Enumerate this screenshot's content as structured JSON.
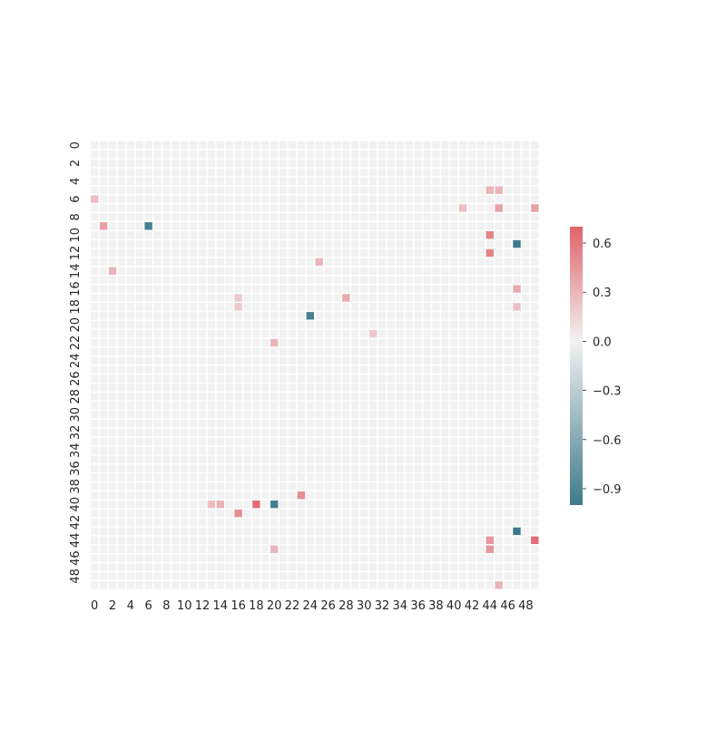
{
  "chart_data": {
    "type": "heatmap",
    "rows": 50,
    "cols": 50,
    "x_ticks": [
      "0",
      "2",
      "4",
      "6",
      "8",
      "10",
      "12",
      "14",
      "16",
      "18",
      "20",
      "22",
      "24",
      "26",
      "28",
      "30",
      "32",
      "34",
      "36",
      "38",
      "40",
      "42",
      "44",
      "46",
      "48"
    ],
    "y_ticks": [
      "0",
      "2",
      "4",
      "6",
      "8",
      "10",
      "12",
      "14",
      "16",
      "18",
      "20",
      "22",
      "24",
      "26",
      "28",
      "30",
      "32",
      "34",
      "36",
      "38",
      "40",
      "42",
      "44",
      "46",
      "48"
    ],
    "colorbar": {
      "vmin": -1.0,
      "vmax": 0.7,
      "ticks": [
        0.6,
        0.3,
        0.0,
        -0.3,
        -0.6,
        -0.9
      ],
      "tick_labels": [
        "0.6",
        "0.3",
        "0.0",
        "−0.3",
        "−0.6",
        "−0.9"
      ],
      "colors": {
        "negative": "#3d7a8a",
        "neutral": "#f2f2f2",
        "positive": "#e0646b"
      }
    },
    "grid": false,
    "cells": [
      {
        "row": 5,
        "col": 44,
        "value": 0.3
      },
      {
        "row": 5,
        "col": 45,
        "value": 0.3
      },
      {
        "row": 6,
        "col": 0,
        "value": 0.25
      },
      {
        "row": 7,
        "col": 41,
        "value": 0.25
      },
      {
        "row": 7,
        "col": 45,
        "value": 0.4
      },
      {
        "row": 7,
        "col": 49,
        "value": 0.4
      },
      {
        "row": 9,
        "col": 1,
        "value": 0.4
      },
      {
        "row": 9,
        "col": 6,
        "value": -0.95
      },
      {
        "row": 10,
        "col": 44,
        "value": 0.55
      },
      {
        "row": 11,
        "col": 47,
        "value": -1.0
      },
      {
        "row": 12,
        "col": 44,
        "value": 0.55
      },
      {
        "row": 13,
        "col": 25,
        "value": 0.3
      },
      {
        "row": 14,
        "col": 2,
        "value": 0.3
      },
      {
        "row": 16,
        "col": 47,
        "value": 0.35
      },
      {
        "row": 17,
        "col": 16,
        "value": 0.2
      },
      {
        "row": 17,
        "col": 28,
        "value": 0.35
      },
      {
        "row": 18,
        "col": 16,
        "value": 0.2
      },
      {
        "row": 18,
        "col": 47,
        "value": 0.25
      },
      {
        "row": 19,
        "col": 24,
        "value": -0.95
      },
      {
        "row": 21,
        "col": 31,
        "value": 0.2
      },
      {
        "row": 22,
        "col": 20,
        "value": 0.3
      },
      {
        "row": 39,
        "col": 23,
        "value": 0.5
      },
      {
        "row": 40,
        "col": 13,
        "value": 0.25
      },
      {
        "row": 40,
        "col": 14,
        "value": 0.3
      },
      {
        "row": 40,
        "col": 18,
        "value": 0.65
      },
      {
        "row": 40,
        "col": 20,
        "value": -0.95
      },
      {
        "row": 41,
        "col": 16,
        "value": 0.5
      },
      {
        "row": 43,
        "col": 47,
        "value": -1.0
      },
      {
        "row": 44,
        "col": 44,
        "value": 0.45
      },
      {
        "row": 44,
        "col": 49,
        "value": 0.65
      },
      {
        "row": 45,
        "col": 20,
        "value": 0.3
      },
      {
        "row": 45,
        "col": 44,
        "value": 0.45
      },
      {
        "row": 49,
        "col": 45,
        "value": 0.3
      }
    ]
  }
}
